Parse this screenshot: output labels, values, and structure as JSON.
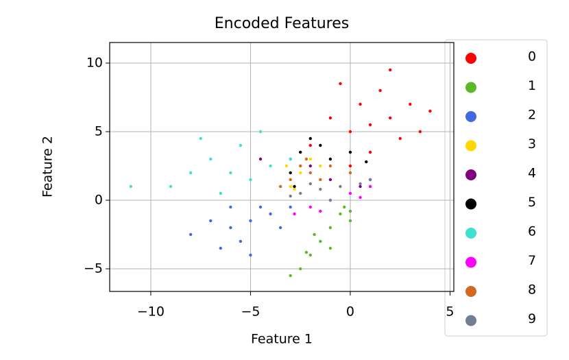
{
  "chart_data": {
    "type": "scatter",
    "title": "Encoded Features",
    "x_label": "Feature 1",
    "y_label": "Feature 2",
    "xlim": [
      -12.06,
      5.19
    ],
    "ylim": [
      -6.65,
      11.5
    ],
    "xticks": [
      {
        "value": -10,
        "label": "−10"
      },
      {
        "value": -5,
        "label": "−5"
      },
      0,
      5
    ],
    "yticks": [
      {
        "value": -5,
        "label": "−5"
      },
      0,
      5,
      10
    ],
    "grid": true,
    "legend": "outside right",
    "series": [
      {
        "name": "0",
        "color": "#ff0000",
        "x": [
          -2,
          -1,
          0,
          0.5,
          1,
          1.5,
          2,
          2.5,
          3,
          3.5,
          -0.5,
          1,
          2,
          4,
          0
        ],
        "values": [
          4,
          6,
          5,
          7,
          5.5,
          8,
          6,
          4.5,
          7,
          5,
          8.5,
          3.5,
          9.5,
          6.5,
          2.5
        ]
      },
      {
        "name": "1",
        "color": "#5cb82a",
        "x": [
          -1,
          -0.5,
          -1.5,
          -2,
          -2.5,
          0,
          -1,
          -3,
          -0.3,
          -1.8,
          -2.2,
          0
        ],
        "values": [
          -2,
          -1,
          -3,
          -4,
          -5,
          -1.5,
          -3.5,
          -5.5,
          -0.5,
          -2.5,
          -3.8,
          -0.8
        ]
      },
      {
        "name": "2",
        "color": "#4169e1",
        "x": [
          -5,
          -6,
          -4,
          -7,
          -5.5,
          -4.5,
          -6.5,
          -3.5,
          -8,
          -5,
          -3,
          -6
        ],
        "values": [
          -1.5,
          -2,
          -1,
          -1.5,
          -3,
          -0.5,
          -3.5,
          -2,
          -2.5,
          -4,
          -0.5,
          -0.5
        ]
      },
      {
        "name": "3",
        "color": "#ffd700",
        "x": [
          -2.5,
          -3,
          -2,
          -1.5,
          -3.2,
          -2.8
        ],
        "values": [
          2,
          1,
          3,
          2.5,
          2.5,
          0.8
        ]
      },
      {
        "name": "4",
        "color": "#800080",
        "x": [
          -1,
          0.5,
          -2,
          1,
          -4.5
        ],
        "values": [
          1.5,
          1,
          2.5,
          1.5,
          3
        ]
      },
      {
        "name": "5",
        "color": "#000000",
        "x": [
          -2.5,
          -1.5,
          -3,
          -1,
          0,
          -2,
          -3,
          0.8,
          -2.8
        ],
        "values": [
          3.5,
          4,
          2,
          3,
          3.5,
          4.5,
          3,
          2.8,
          1
        ]
      },
      {
        "name": "6",
        "color": "#40e0d0",
        "x": [
          -6,
          -7,
          -5,
          -8,
          -5.5,
          -4,
          -6.5,
          -9,
          -7.5,
          -11,
          -4.5,
          -3
        ],
        "values": [
          2,
          3,
          1.5,
          2,
          4,
          2.5,
          0.5,
          1,
          4.5,
          1,
          5,
          3
        ]
      },
      {
        "name": "7",
        "color": "#ff00ff",
        "x": [
          -2,
          -1,
          0,
          1,
          -2.8,
          0.5,
          -1.5
        ],
        "values": [
          -0.5,
          0,
          0.5,
          1,
          -1,
          0.2,
          -0.8
        ]
      },
      {
        "name": "8",
        "color": "#d2691e",
        "x": [
          -2,
          -2.5,
          -1.5,
          -3,
          -1,
          -2.2,
          -3.5,
          0
        ],
        "values": [
          2,
          2.5,
          1.5,
          1.5,
          2.5,
          3,
          1,
          2
        ]
      },
      {
        "name": "9",
        "color": "#708090",
        "x": [
          -1.5,
          -2.5,
          -0.5,
          0.5,
          -1,
          -2,
          1,
          -3
        ],
        "values": [
          0.8,
          0.5,
          1,
          1.2,
          0,
          1.2,
          1.5,
          0.3
        ]
      }
    ]
  }
}
